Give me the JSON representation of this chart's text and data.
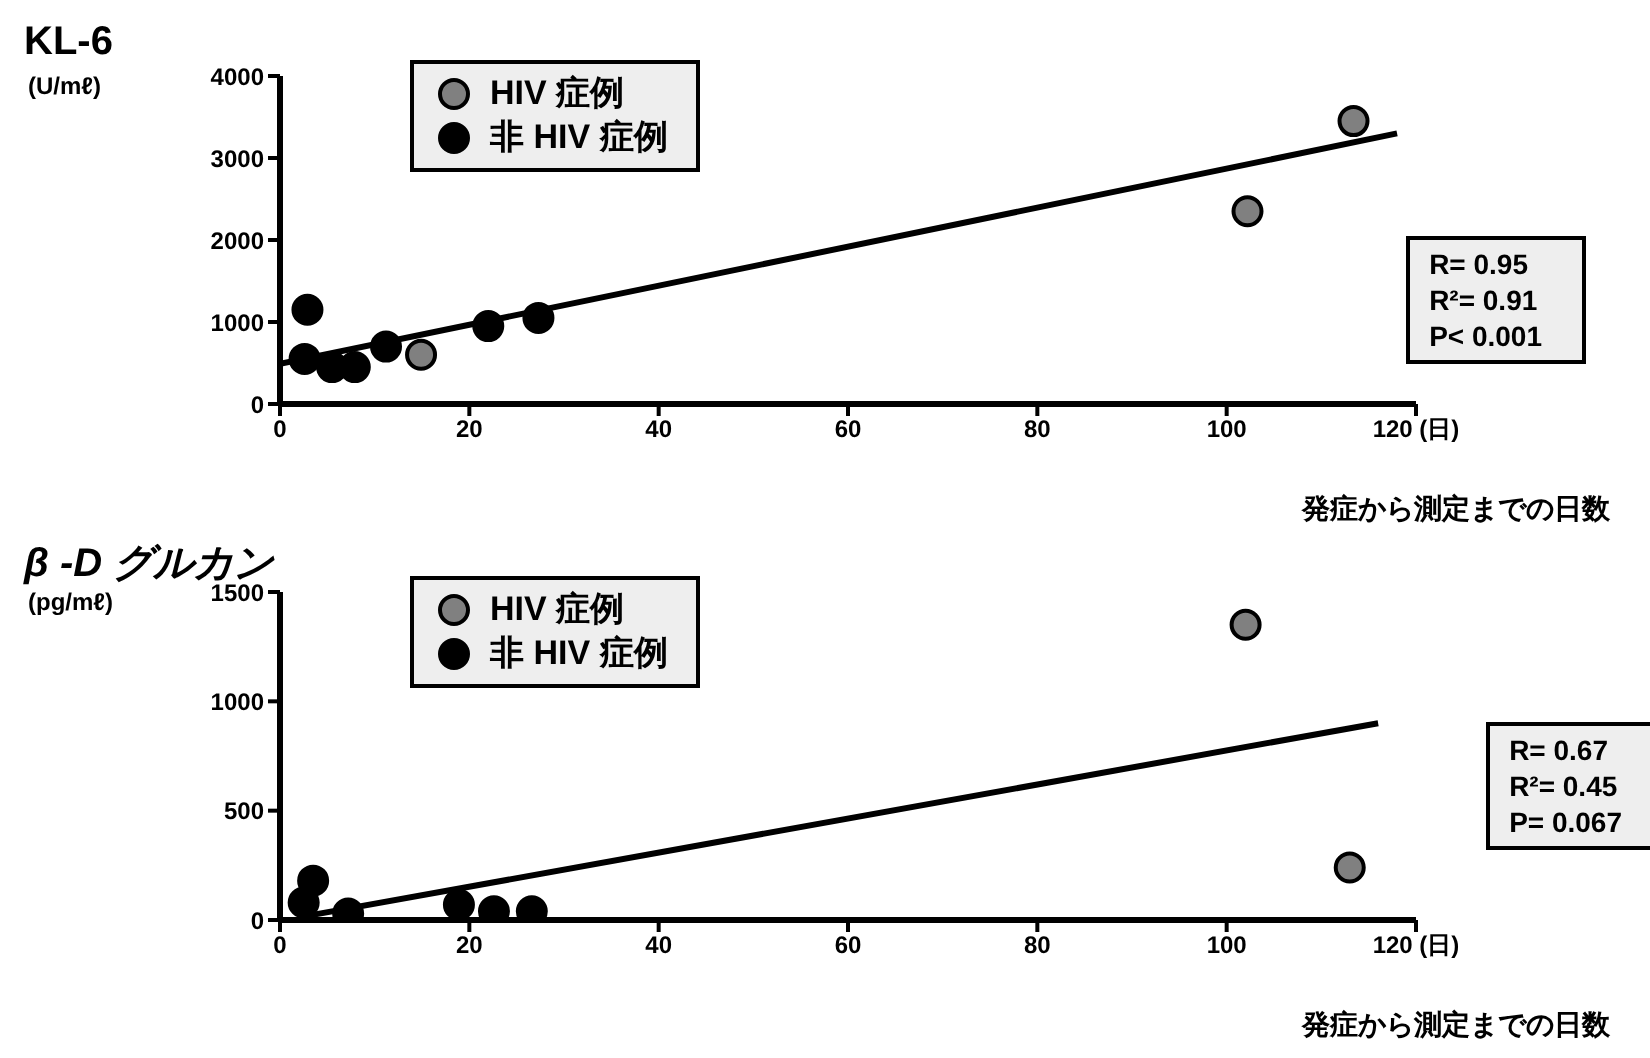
{
  "chart_data": [
    {
      "type": "scatter",
      "title": "KL-6",
      "ylabel": "(U/mℓ)",
      "xlabel": "発症から測定までの日数",
      "xlim": [
        0,
        120
      ],
      "xticks": [
        0,
        20,
        40,
        60,
        80,
        100,
        {
          "value": 120,
          "label": "120 (日)"
        }
      ],
      "ylim": [
        0,
        4000
      ],
      "yticks": [
        0,
        1000,
        2000,
        3000,
        4000
      ],
      "legend": "top left",
      "series": [
        {
          "name": "HIV 症例",
          "type": "scatter",
          "marker": "circle",
          "color": "#808080",
          "x": [
            113.4,
            102.2,
            14.9
          ],
          "values": [
            3450,
            2350,
            600
          ]
        },
        {
          "name": "非 HIV 症例",
          "type": "scatter",
          "marker": "circle",
          "color": "#000000",
          "x": [
            2.6,
            2.9,
            5.5,
            7.9,
            11.2,
            22,
            27.3
          ],
          "values": [
            550,
            1150,
            450,
            450,
            700,
            950,
            1050
          ]
        },
        {
          "type": "line",
          "color": "#000000",
          "x": [
            0,
            118
          ],
          "values": [
            490,
            3300
          ]
        }
      ],
      "annotations": [
        "R= 0.95",
        "R²= 0.91",
        "P< 0.001"
      ]
    },
    {
      "type": "scatter",
      "title": "β -D グルカン",
      "ylabel": "(pg/mℓ)",
      "xlabel": "発症から測定までの日数",
      "xlim": [
        0,
        120
      ],
      "xticks": [
        0,
        20,
        40,
        60,
        80,
        100,
        {
          "value": 120,
          "label": "120 (日)"
        }
      ],
      "ylim": [
        0,
        1500
      ],
      "yticks": [
        0,
        500,
        1000,
        1500
      ],
      "legend": "top left",
      "series": [
        {
          "name": "HIV 症例",
          "type": "scatter",
          "marker": "circle",
          "color": "#808080",
          "x": [
            102,
            113
          ],
          "values": [
            1350,
            240
          ]
        },
        {
          "name": "非 HIV 症例",
          "type": "scatter",
          "marker": "circle",
          "color": "#000000",
          "x": [
            2.5,
            3.5,
            7.2,
            18.9,
            22.6,
            26.6
          ],
          "values": [
            80,
            180,
            30,
            70,
            40,
            40
          ]
        },
        {
          "type": "line",
          "color": "#000000",
          "x": [
            3,
            116
          ],
          "values": [
            20,
            900
          ]
        }
      ],
      "annotations": [
        "R= 0.67",
        "R²= 0.45",
        "P= 0.067"
      ]
    }
  ]
}
